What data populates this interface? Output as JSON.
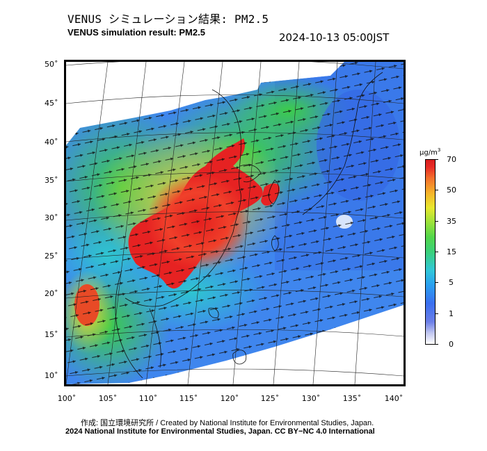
{
  "title_jp": "VENUS シミュレーション結果: PM2.5",
  "title_en": "VENUS simulation result: PM2.5",
  "timestamp": "2024-10-13 05:00JST",
  "lat_labels": [
    "50˚",
    "45˚",
    "40˚",
    "35˚",
    "30˚",
    "25˚",
    "20˚",
    "15˚",
    "10˚"
  ],
  "lon_labels": [
    "100˚",
    "105˚",
    "110˚",
    "115˚",
    "120˚",
    "125˚",
    "130˚",
    "135˚",
    "140˚"
  ],
  "colorbar": {
    "unit_main": "μg/m",
    "unit_sup": "3",
    "tick_labels": [
      "70",
      "50",
      "35",
      "15",
      "5",
      "1",
      "0"
    ]
  },
  "credit_line1": "作成: 国立環境研究所 / Created by National Institute for Environmental Studies, Japan.",
  "credit_line2": "2024 National Institute for Environmental Studies, Japan. CC BY−NC 4.0 International"
}
